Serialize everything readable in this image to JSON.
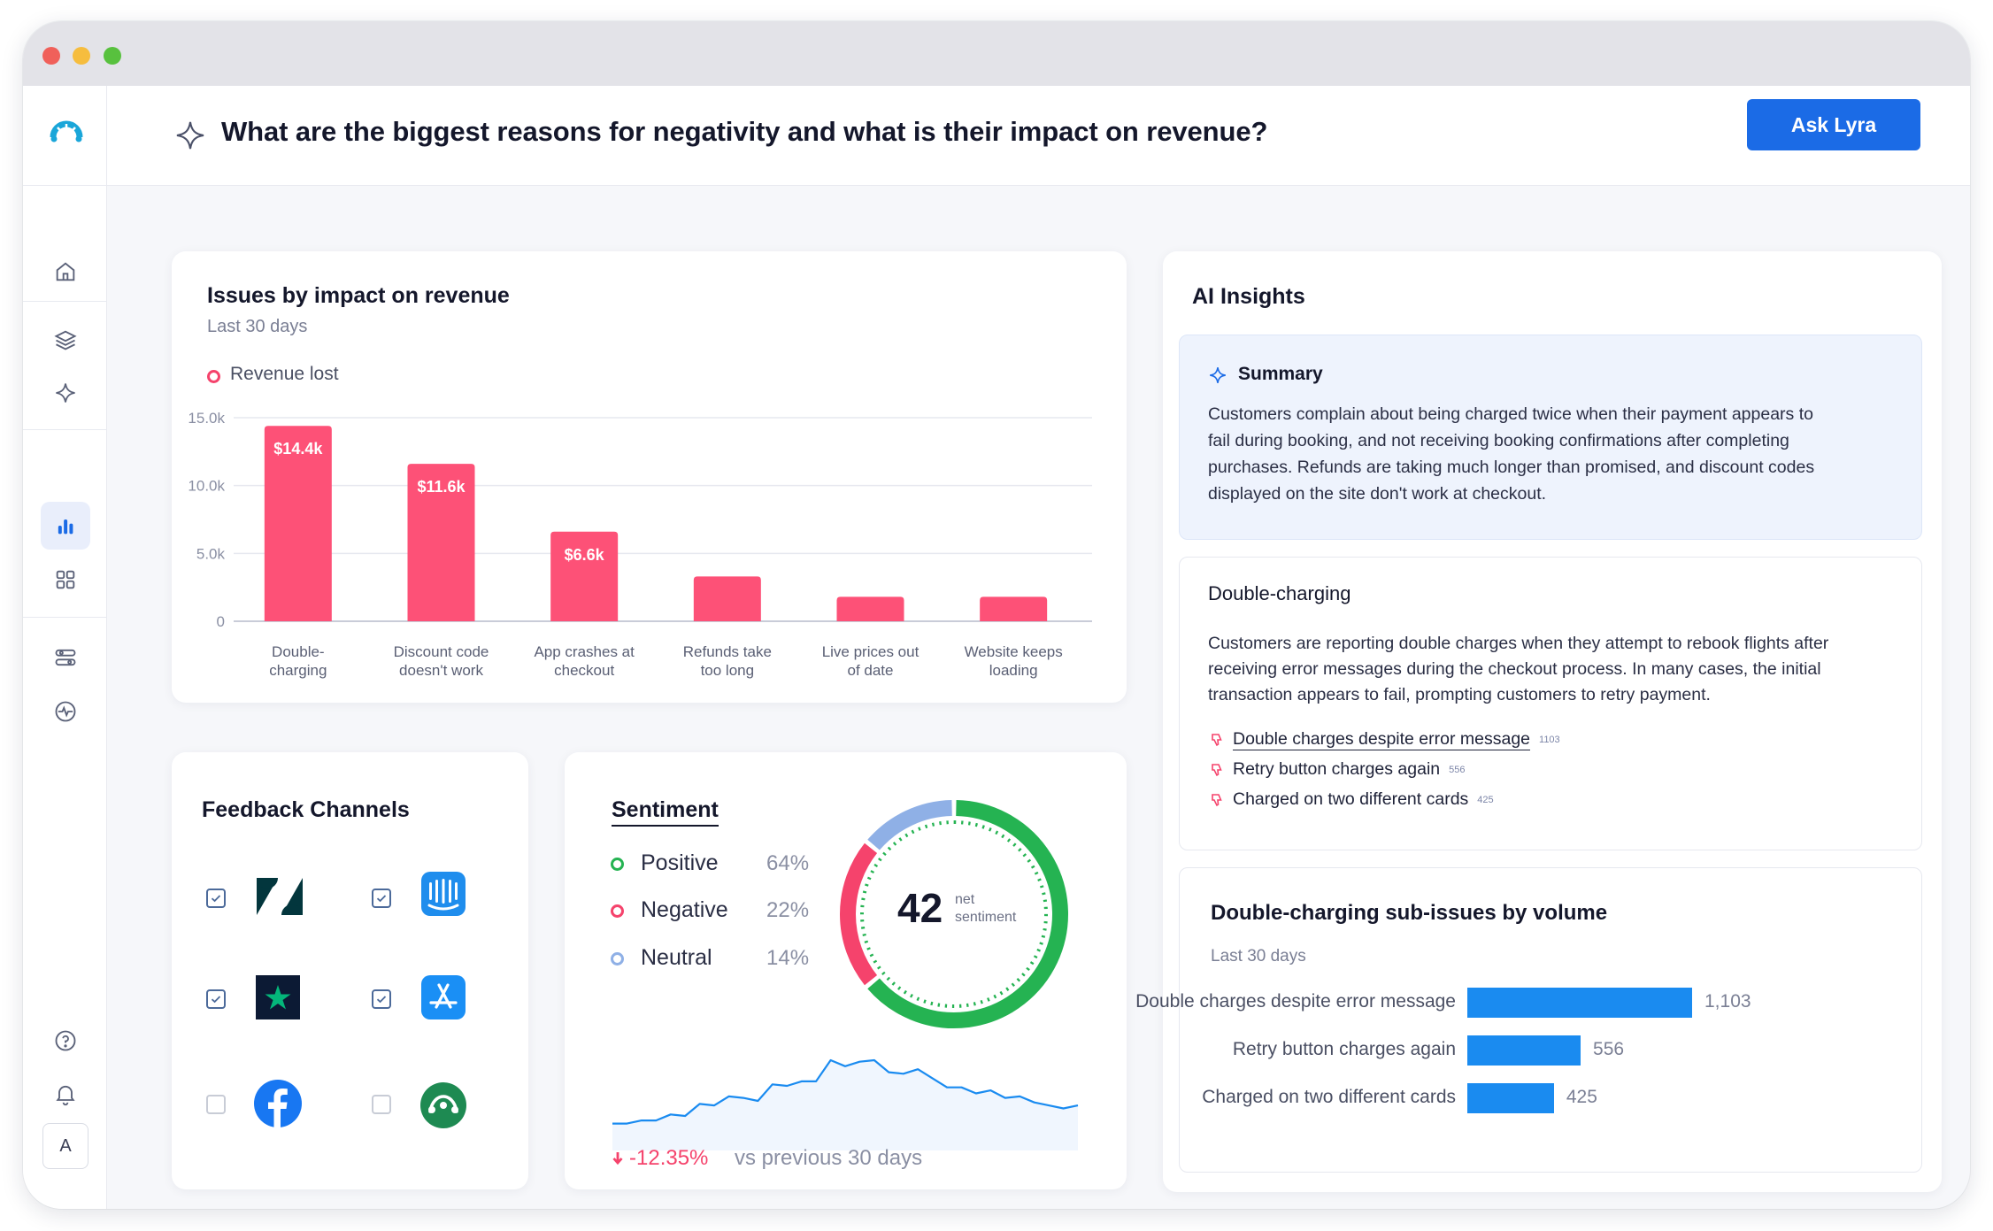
{
  "question": "What are the biggest reasons for negativity and what is their impact on revenue?",
  "ask_button": "Ask Lyra",
  "sidebar": {
    "avatar_initial": "A"
  },
  "issues_card": {
    "title": "Issues by impact on revenue",
    "subtitle": "Last 30 days",
    "legend": "Revenue lost"
  },
  "chart_data": {
    "type": "bar",
    "title": "Issues by impact on revenue",
    "ylim": [
      0,
      15000
    ],
    "yticks": [
      "0",
      "5.0k",
      "10.0k",
      "15.0k"
    ],
    "ytick_values": [
      0,
      5000,
      10000,
      15000
    ],
    "categories": [
      [
        "Double-",
        "charging"
      ],
      [
        "Discount code",
        "doesn't work"
      ],
      [
        "App crashes at",
        "checkout"
      ],
      [
        "Refunds take",
        "too long"
      ],
      [
        "Live prices out",
        "of date"
      ],
      [
        "Website keeps",
        "loading"
      ]
    ],
    "values": [
      14400,
      11600,
      6600,
      3300,
      1800,
      1800
    ],
    "data_labels": [
      "$14.4k",
      "$11.6k",
      "$6.6k",
      "",
      "",
      ""
    ],
    "color": "#fd5177"
  },
  "feedback": {
    "title": "Feedback Channels",
    "channels": [
      {
        "name": "Zendesk",
        "checked": true
      },
      {
        "name": "Intercom",
        "checked": true
      },
      {
        "name": "Trustpilot",
        "checked": true
      },
      {
        "name": "App Store",
        "checked": true
      },
      {
        "name": "Facebook",
        "checked": false
      },
      {
        "name": "SurveyMonkey",
        "checked": false
      }
    ]
  },
  "sentiment": {
    "title": "Sentiment",
    "items": [
      {
        "label": "Positive",
        "value": "64%",
        "color": "#25b352"
      },
      {
        "label": "Negative",
        "value": "22%",
        "color": "#f5436c"
      },
      {
        "label": "Neutral",
        "value": "14%",
        "color": "#8fb0e6"
      }
    ],
    "net_value": "42",
    "net_label_1": "net",
    "net_label_2": "sentiment",
    "change": "-12.35%",
    "change_caption": "vs previous 30 days",
    "trend": [
      12,
      12,
      14,
      14,
      18,
      17,
      25,
      24,
      30,
      29,
      27,
      38,
      37,
      40,
      40,
      54,
      50,
      53,
      54,
      46,
      45,
      48,
      42,
      36,
      36,
      32,
      34,
      29,
      30,
      26,
      24,
      22,
      24
    ]
  },
  "insights": {
    "title": "AI Insights",
    "summary_title": "Summary",
    "summary_lines": [
      "Customers complain about being charged twice when their payment appears to",
      "fail during booking, and not receiving booking confirmations after completing",
      "purchases. Refunds are taking much longer than promised, and discount codes",
      "displayed on the site don't work at checkout."
    ],
    "issue_title": "Double-charging",
    "issue_lines": [
      "Customers are reporting double charges when they attempt to rebook flights after",
      "receiving error messages during the checkout process. In many cases, the initial",
      "transaction appears to fail, prompting customers to retry payment."
    ],
    "sub_issues": [
      {
        "label": "Double charges despite error message",
        "count": "1103"
      },
      {
        "label": "Retry button charges again",
        "count": "556"
      },
      {
        "label": "Charged on two different cards",
        "count": "425"
      }
    ],
    "volume_title": "Double-charging sub-issues by volume",
    "volume_subtitle": "Last 30 days",
    "volume_bars": [
      {
        "label": "Double charges despite error message",
        "value": 1103,
        "value_label": "1,103"
      },
      {
        "label": "Retry button charges again",
        "value": 556,
        "value_label": "556"
      },
      {
        "label": "Charged on two different cards",
        "value": 425,
        "value_label": "425"
      }
    ],
    "bar_color": "#1a8bf0"
  }
}
